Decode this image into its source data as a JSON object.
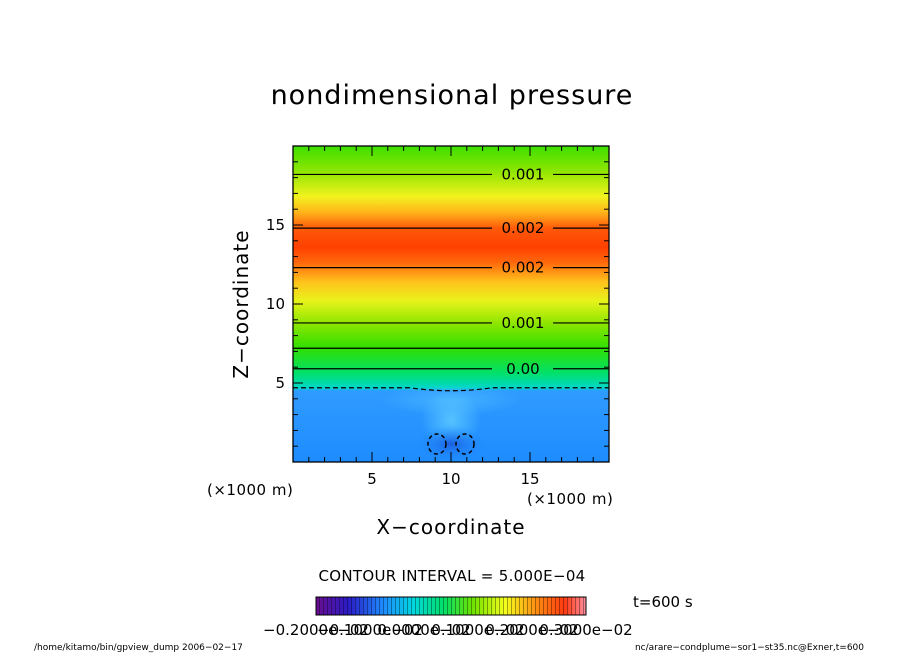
{
  "chart_data": {
    "type": "heatmap",
    "title": "nondimensional pressure",
    "xlabel": "X−coordinate",
    "ylabel": "Z−coordinate",
    "x_unit_label": "(×1000 m)",
    "z_unit_label": "(×1000 m)",
    "xlim": [
      0,
      20
    ],
    "ylim": [
      0,
      20
    ],
    "x_ticks": [
      "5",
      "10",
      "15"
    ],
    "y_ticks": [
      "5",
      "10",
      "15"
    ],
    "contour_interval_text": "CONTOUR INTERVAL = 5.000E−04",
    "time_text": "t=600 s",
    "colorbar_tick_labels": [
      "−0.2000e−02",
      "−0.1000e−02",
      "0.0000e−02",
      "0.1000e−02",
      "0.2000e−02",
      "0.3000e−02"
    ],
    "contours": [
      {
        "z": 18.2,
        "label": "0.001"
      },
      {
        "z": 14.8,
        "label": "0.002"
      },
      {
        "z": 12.3,
        "label": "0.002"
      },
      {
        "z": 8.8,
        "label": "0.001"
      },
      {
        "z": 7.2,
        "label": ""
      },
      {
        "z": 5.9,
        "label": "0.00"
      },
      {
        "z": 4.7,
        "label": "",
        "dashed": true
      }
    ],
    "vertical_profile": [
      {
        "z": 0,
        "value": -0.001
      },
      {
        "z": 4.5,
        "value": -0.0008
      },
      {
        "z": 5.5,
        "value": 0.0
      },
      {
        "z": 8.0,
        "value": 0.001
      },
      {
        "z": 11.0,
        "value": 0.002
      },
      {
        "z": 13.5,
        "value": 0.0027
      },
      {
        "z": 16.0,
        "value": 0.002
      },
      {
        "z": 20.0,
        "value": 0.0007
      }
    ],
    "colors": {
      "low": "#6a0d8f",
      "blue": "#1e90ff",
      "green": "#2fe000",
      "yellow": "#f5ff1c",
      "high": "#ff4000"
    }
  },
  "footer": {
    "left": "/home/kitamo/bin/gpview_dump  2006−02−17",
    "right": "nc/arare−condplume−sor1−st35.nc@Exner,t=600"
  }
}
